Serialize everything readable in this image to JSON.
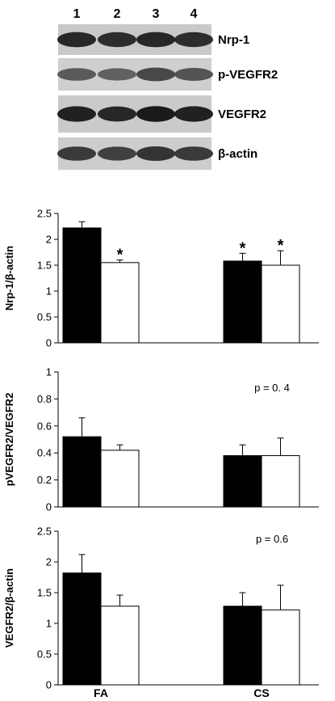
{
  "blot": {
    "lanes": [
      "1",
      "2",
      "3",
      "4"
    ],
    "panels": [
      {
        "label": "Nrp-1",
        "intensity": [
          0.85,
          0.8,
          0.85,
          0.8
        ],
        "bg": "#c9c9c9"
      },
      {
        "label": "p-VEGFR2",
        "intensity": [
          0.45,
          0.4,
          0.6,
          0.5
        ],
        "bg": "#cfcfcf"
      },
      {
        "label": "VEGFR2",
        "intensity": [
          0.9,
          0.85,
          0.95,
          0.9
        ],
        "bg": "#cacaca"
      },
      {
        "label": "β-actin",
        "intensity": [
          0.7,
          0.65,
          0.75,
          0.7
        ],
        "bg": "#cdcdcd"
      }
    ]
  },
  "colors": {
    "series_filled": "#000000",
    "series_open": "#ffffff"
  },
  "chart_data": [
    {
      "type": "bar",
      "categories": [
        "FA",
        "CS"
      ],
      "ylabel": "Nrp-1/β-actin",
      "ylim": [
        0,
        2.5
      ],
      "yticks": [
        "0",
        "0.5",
        "1",
        "1.5",
        "2",
        "2.5"
      ],
      "series": [
        {
          "values": [
            2.22,
            1.58
          ],
          "errors": [
            0.12,
            0.15
          ],
          "significant": [
            false,
            true
          ]
        },
        {
          "values": [
            1.55,
            1.5
          ],
          "errors": [
            0.05,
            0.28
          ],
          "significant": [
            true,
            true
          ]
        }
      ],
      "annotation": ""
    },
    {
      "type": "bar",
      "categories": [
        "FA",
        "CS"
      ],
      "ylabel": "pVEGFR2/VEGFR2",
      "ylim": [
        0,
        1
      ],
      "yticks": [
        "0",
        "0.2",
        "0.4",
        "0.6",
        "0.8",
        "1"
      ],
      "series": [
        {
          "values": [
            0.52,
            0.38
          ],
          "errors": [
            0.14,
            0.08
          ],
          "significant": [
            false,
            false
          ]
        },
        {
          "values": [
            0.42,
            0.38
          ],
          "errors": [
            0.04,
            0.13
          ],
          "significant": [
            false,
            false
          ]
        }
      ],
      "annotation": "p = 0. 4"
    },
    {
      "type": "bar",
      "categories": [
        "FA",
        "CS"
      ],
      "ylabel": "VEGFR2/β-actin",
      "ylim": [
        0,
        2.5
      ],
      "yticks": [
        "0",
        "0.5",
        "1",
        "1.5",
        "2",
        "2.5"
      ],
      "series": [
        {
          "values": [
            1.82,
            1.28
          ],
          "errors": [
            0.3,
            0.22
          ],
          "significant": [
            false,
            false
          ]
        },
        {
          "values": [
            1.28,
            1.22
          ],
          "errors": [
            0.18,
            0.4
          ],
          "significant": [
            false,
            false
          ]
        }
      ],
      "annotation": "p = 0.6"
    }
  ]
}
